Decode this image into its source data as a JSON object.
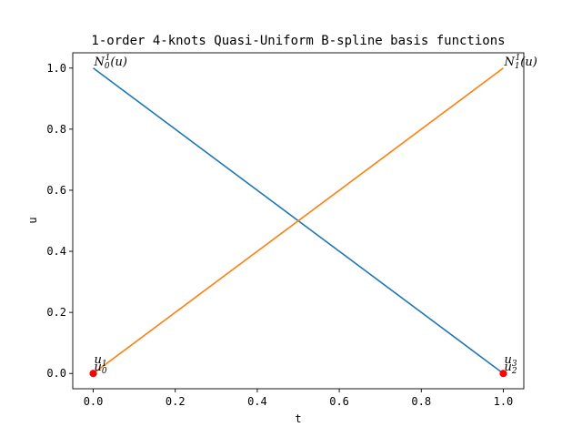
{
  "chart_data": {
    "type": "line",
    "title": "1-order 4-knots Quasi-Uniform B-spline basis functions",
    "xlabel": "t",
    "ylabel": "u",
    "xlim": [
      -0.05,
      1.05
    ],
    "ylim": [
      -0.05,
      1.05
    ],
    "xticks": [
      0.0,
      0.2,
      0.4,
      0.6,
      0.8,
      1.0
    ],
    "xtick_labels": [
      "0.0",
      "0.2",
      "0.4",
      "0.6",
      "0.8",
      "1.0"
    ],
    "yticks": [
      0.0,
      0.2,
      0.4,
      0.6,
      0.8,
      1.0
    ],
    "ytick_labels": [
      "0.0",
      "0.2",
      "0.4",
      "0.6",
      "0.8",
      "1.0"
    ],
    "grid": false,
    "series": [
      {
        "x": [
          0.0,
          1.0
        ],
        "y": [
          1.0,
          0.0
        ],
        "color": "#1f77b4"
      },
      {
        "x": [
          0.0,
          1.0
        ],
        "y": [
          0.0,
          1.0
        ],
        "color": "#ff7f0e"
      }
    ],
    "knots": {
      "x": [
        0.0,
        0.0,
        1.0,
        1.0
      ],
      "y": [
        0.0,
        0.0,
        0.0,
        0.0
      ],
      "color": "#ff0000"
    },
    "annotations": [
      {
        "base": "N",
        "sub": "0",
        "sup": "1",
        "tail": "(u)",
        "x": 0.0,
        "y": 1.0
      },
      {
        "base": "N",
        "sub": "1",
        "sup": "1",
        "tail": "(u)",
        "x": 1.0,
        "y": 1.0
      },
      {
        "base": "u",
        "sub": "0",
        "sup": "",
        "tail": "",
        "x": 0.0,
        "y": 0.0
      },
      {
        "base": "u",
        "sub": "1",
        "sup": "",
        "tail": "",
        "x": 0.0,
        "y": 0.0,
        "raised": true
      },
      {
        "base": "u",
        "sub": "2",
        "sup": "",
        "tail": "",
        "x": 1.0,
        "y": 0.0
      },
      {
        "base": "u",
        "sub": "3",
        "sup": "",
        "tail": "",
        "x": 1.0,
        "y": 0.0,
        "raised": true
      }
    ]
  }
}
